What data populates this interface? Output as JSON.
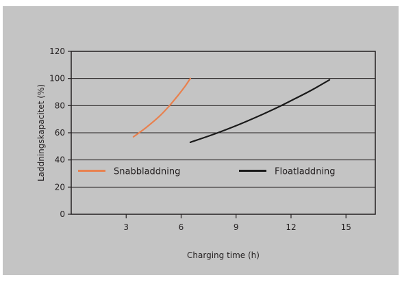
{
  "chart_data": {
    "type": "line",
    "xlabel": "Charging time (h)",
    "ylabel": "Laddningskapacitet (%)",
    "xlim": [
      0,
      16.6
    ],
    "ylim": [
      0,
      120
    ],
    "x_ticks": [
      3,
      6,
      9,
      12,
      15
    ],
    "y_ticks": [
      0,
      20,
      40,
      60,
      80,
      100,
      120
    ],
    "grid": "horizontal",
    "legend": "inside-center",
    "series": [
      {
        "name": "Snabbladdning",
        "color": "#e8814f",
        "x": [
          3.4,
          4.1,
          4.8,
          5.3,
          5.8,
          6.2,
          6.5
        ],
        "y": [
          57,
          64,
          72,
          79,
          87,
          94,
          100
        ]
      },
      {
        "name": "Floatladdning",
        "color": "#1a1a1a",
        "x": [
          6.5,
          8.0,
          9.5,
          11.0,
          12.2,
          13.2,
          14.1
        ],
        "y": [
          53,
          60,
          68,
          77,
          85,
          92,
          99
        ]
      }
    ],
    "colors": {
      "background": "#c4c4c4",
      "plot_area": "#c4c4c4",
      "grid": "#231f20",
      "axis": "#231f20"
    }
  }
}
